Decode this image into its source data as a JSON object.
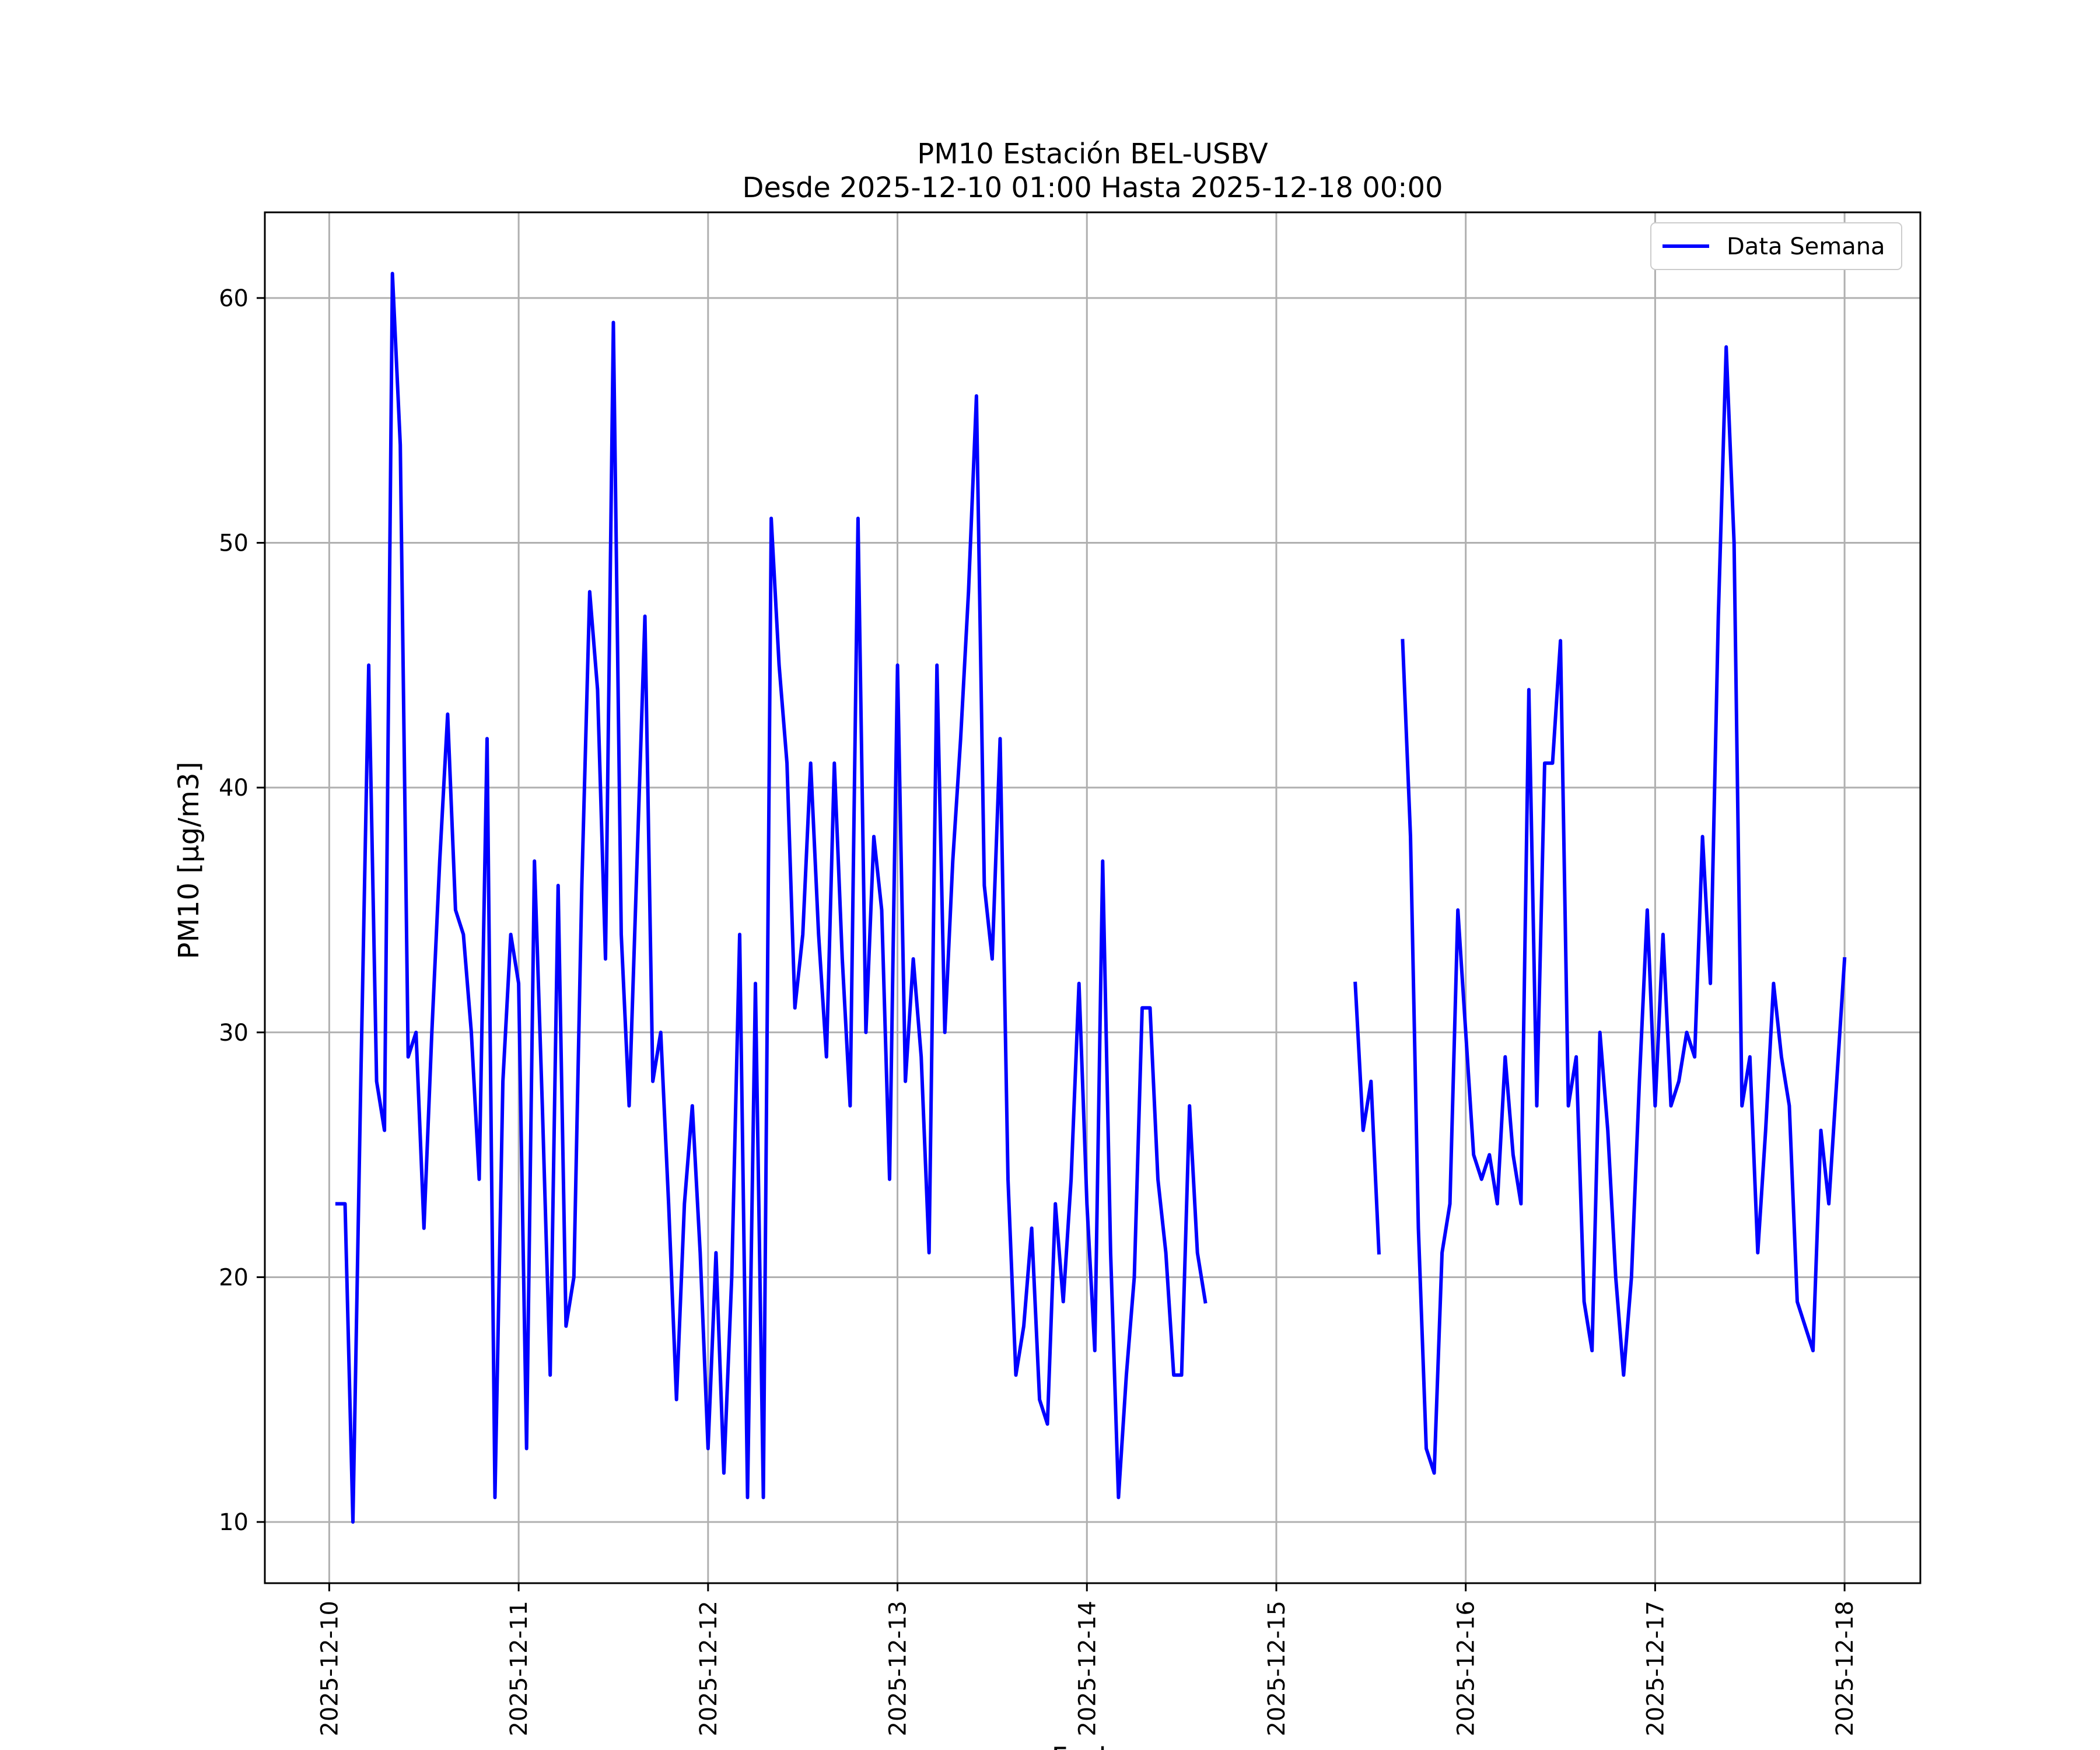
{
  "chart_data": {
    "type": "line",
    "title": "PM10 Estación BEL-USBV",
    "subtitle": "Desde 2025-12-10 01:00 Hasta 2025-12-18 00:00",
    "xlabel": "Fecha",
    "ylabel": "PM10 [μg/m3]",
    "xlim": [
      -0.34,
      8.4
    ],
    "ylim": [
      7.5,
      63.5
    ],
    "grid": true,
    "legend": "top-right",
    "line_color": "#0000ff",
    "x_ticks": [
      {
        "v": 0,
        "label": "2025-12-10"
      },
      {
        "v": 1,
        "label": "2025-12-11"
      },
      {
        "v": 2,
        "label": "2025-12-12"
      },
      {
        "v": 3,
        "label": "2025-12-13"
      },
      {
        "v": 4,
        "label": "2025-12-14"
      },
      {
        "v": 5,
        "label": "2025-12-15"
      },
      {
        "v": 6,
        "label": "2025-12-16"
      },
      {
        "v": 7,
        "label": "2025-12-17"
      },
      {
        "v": 8,
        "label": "2025-12-18"
      }
    ],
    "y_ticks": [
      {
        "v": 10,
        "label": "10"
      },
      {
        "v": 20,
        "label": "20"
      },
      {
        "v": 30,
        "label": "30"
      },
      {
        "v": 40,
        "label": "40"
      },
      {
        "v": 50,
        "label": "50"
      },
      {
        "v": 60,
        "label": "60"
      }
    ],
    "series": [
      {
        "name": "Data Semana",
        "segments": [
          {
            "start": 0.0417,
            "step": 0.041667,
            "values": [
              23,
              23,
              10,
              28,
              45,
              28,
              26,
              61,
              54,
              29,
              30,
              22,
              30,
              37,
              43,
              35,
              34,
              30,
              24,
              42,
              11,
              28,
              34,
              32,
              13,
              37,
              27,
              16,
              36,
              18,
              20,
              36,
              48,
              44,
              33,
              59,
              34,
              27,
              37,
              47,
              28,
              30,
              23,
              15,
              23,
              27,
              21,
              13,
              21,
              12,
              20,
              34,
              11,
              32,
              11,
              51,
              45,
              41,
              31,
              34,
              41,
              34,
              29,
              41,
              33,
              27,
              51,
              30,
              38,
              35,
              24,
              45,
              28,
              33,
              29,
              21,
              45,
              30,
              37,
              42,
              48,
              56,
              36,
              33,
              42,
              24,
              16,
              18,
              22,
              15,
              14,
              23,
              19,
              24,
              32,
              23,
              17,
              37,
              21,
              11,
              16,
              20,
              31,
              31,
              24,
              21,
              16,
              16,
              27,
              21,
              19
            ]
          },
          {
            "start": 5.4167,
            "step": 0.041667,
            "values": [
              32,
              26,
              28,
              21
            ]
          },
          {
            "start": 5.6667,
            "step": 0.041667,
            "values": [
              46,
              38,
              22,
              13,
              12,
              21,
              23,
              35,
              30,
              25,
              24,
              25,
              23,
              29,
              25,
              23,
              44,
              27,
              41,
              41,
              46,
              27,
              29,
              19,
              17,
              30,
              26,
              20,
              16,
              20,
              28,
              35,
              27,
              34,
              27,
              28,
              30,
              29,
              38,
              32,
              47,
              58,
              50,
              27,
              29,
              21,
              26,
              32,
              29,
              27,
              19,
              18,
              17,
              26,
              23,
              28,
              33
            ]
          }
        ]
      }
    ]
  }
}
